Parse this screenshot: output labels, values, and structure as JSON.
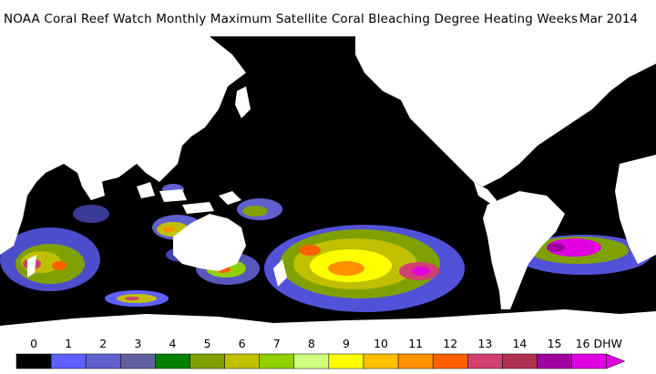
{
  "header": {
    "title": "NOAA Coral Reef Watch Monthly Maximum Satellite Coral Bleaching Degree Heating Weeks",
    "date": "Mar 2014"
  },
  "colors": {
    "ocean": "#000000",
    "land": "#ffffff",
    "bins": [
      "#000000",
      "#6060ff",
      "#6060d0",
      "#6060a0",
      "#008000",
      "#80a000",
      "#c0c000",
      "#90d000",
      "#d0ff80",
      "#ffff00",
      "#ffc000",
      "#ff9000",
      "#ff6000",
      "#d04070",
      "#b03050",
      "#a000a0",
      "#e000e0"
    ]
  },
  "legend": {
    "labels": [
      "0",
      "1",
      "2",
      "3",
      "4",
      "5",
      "6",
      "7",
      "8",
      "9",
      "10",
      "11",
      "12",
      "13",
      "14",
      "15",
      "16 DHW"
    ]
  }
}
